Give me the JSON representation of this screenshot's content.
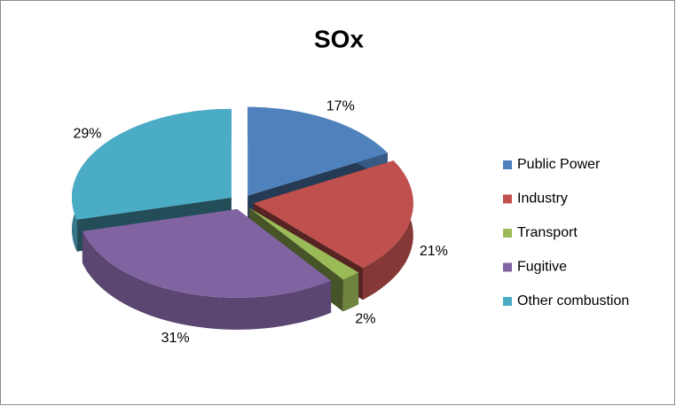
{
  "chart_data": {
    "type": "pie",
    "title": "SOx",
    "categories": [
      "Public Power",
      "Industry",
      "Transport",
      "Fugitive",
      "Other combustion"
    ],
    "values": [
      17,
      21,
      2,
      31,
      29
    ],
    "value_labels": [
      "17%",
      "21%",
      "2%",
      "31%",
      "29%"
    ],
    "colors": [
      "#4f81bd",
      "#c0504d",
      "#9bbb59",
      "#8064a2",
      "#4bacc6"
    ],
    "legend": "right"
  }
}
